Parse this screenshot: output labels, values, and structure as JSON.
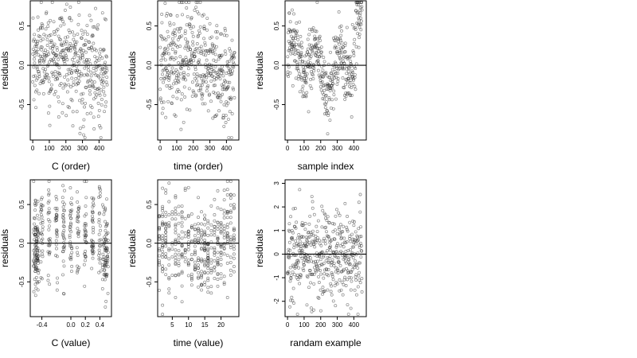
{
  "chart_data": [
    {
      "type": "scatter",
      "xlabel": "C (order)",
      "ylabel": "residuals",
      "xticks": [
        "0",
        "100",
        "200",
        "300",
        "400"
      ],
      "yticks": [
        "-0.5",
        "0.0",
        "0.5"
      ],
      "xlim": [
        -15,
        475
      ],
      "ylim": [
        -0.95,
        0.82
      ],
      "reference_line_y": 0,
      "n_points": 450,
      "pattern": "order_mild"
    },
    {
      "type": "scatter",
      "xlabel": "time (order)",
      "ylabel": "residuals",
      "xticks": [
        "0",
        "100",
        "200",
        "300",
        "400"
      ],
      "yticks": [
        "-0.5",
        "0.0",
        "0.5"
      ],
      "xlim": [
        -15,
        475
      ],
      "ylim": [
        -0.95,
        0.82
      ],
      "reference_line_y": 0,
      "n_points": 450,
      "pattern": "order_mild"
    },
    {
      "type": "scatter",
      "xlabel": "sample index",
      "ylabel": "residuals",
      "xticks": [
        "0",
        "100",
        "200",
        "300",
        "400"
      ],
      "yticks": [
        "-0.5",
        "0.0",
        "0.5"
      ],
      "xlim": [
        -15,
        475
      ],
      "ylim": [
        -0.95,
        0.82
      ],
      "reference_line_y": 0,
      "n_points": 450,
      "pattern": "sample_wave"
    },
    {
      "type": "scatter",
      "xlabel": "C (value)",
      "ylabel": "residuals",
      "xticks": [
        "-0.4",
        "0.0",
        "0.2",
        "0.4"
      ],
      "xtick_values": [
        -0.4,
        0.0,
        0.2,
        0.4
      ],
      "yticks": [
        "-0.5",
        "0.0",
        "0.5"
      ],
      "xlim": [
        -0.56,
        0.56
      ],
      "ylim": [
        -0.95,
        0.82
      ],
      "reference_line_y": 0,
      "n_points": 450,
      "pattern": "c_value"
    },
    {
      "type": "scatter",
      "xlabel": "time (value)",
      "ylabel": "residuals",
      "xticks": [
        "5",
        "10",
        "15",
        "20"
      ],
      "xtick_values": [
        5,
        10,
        15,
        20
      ],
      "yticks": [
        "-0.5",
        "0.0",
        "0.5"
      ],
      "xlim": [
        0.5,
        25.5
      ],
      "ylim": [
        -0.95,
        0.82
      ],
      "reference_line_y": 0,
      "n_points": 450,
      "pattern": "time_value"
    },
    {
      "type": "scatter",
      "xlabel": "randam example",
      "ylabel": "residuals",
      "xticks": [
        "0",
        "100",
        "200",
        "300",
        "400"
      ],
      "yticks": [
        "-2",
        "-1",
        "0",
        "1",
        "2",
        "3"
      ],
      "xlim": [
        -15,
        475
      ],
      "ylim": [
        -2.65,
        3.15
      ],
      "reference_line_y": 0,
      "n_points": 450,
      "pattern": "random_normal"
    }
  ]
}
